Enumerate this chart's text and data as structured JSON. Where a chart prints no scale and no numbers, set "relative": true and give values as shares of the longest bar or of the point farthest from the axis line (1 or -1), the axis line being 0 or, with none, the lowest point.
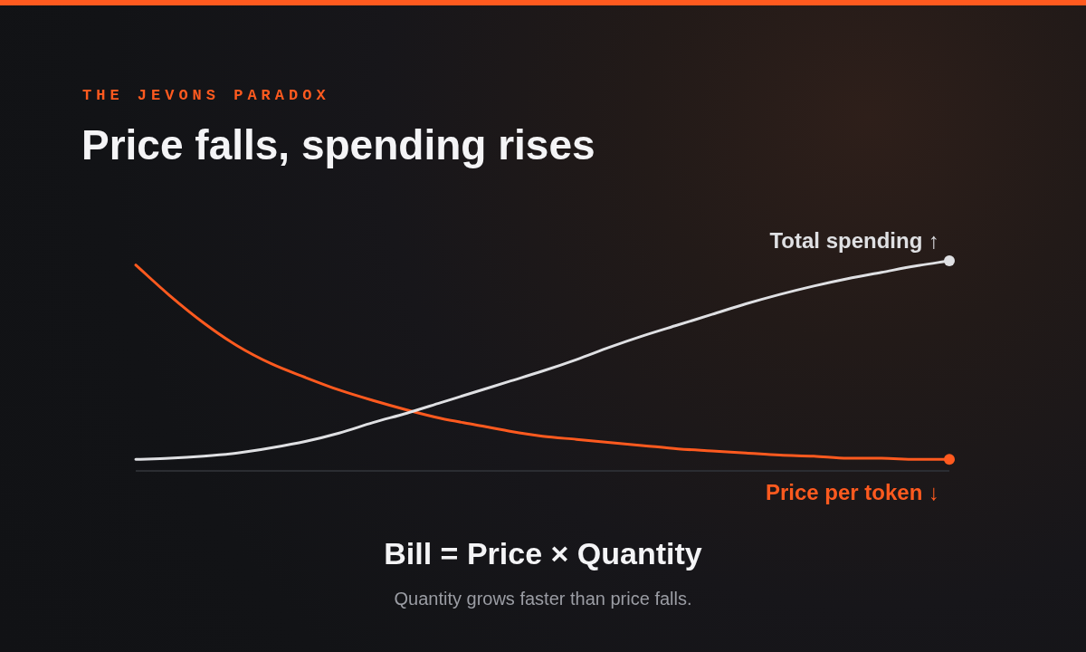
{
  "chart_data": {
    "type": "line",
    "subtitle": "THE JEVONS PARADOX",
    "title": "Price falls, spending rises",
    "relative": true,
    "categories": [
      null,
      null,
      null,
      null,
      null,
      null,
      null,
      null,
      null,
      null,
      null,
      null,
      null,
      null,
      null,
      null,
      null,
      null,
      null,
      null,
      null,
      null,
      null,
      null,
      null
    ],
    "series": [
      {
        "name": "Total spending ↑",
        "color": "#dfe0e3",
        "values": [
          0.055,
          0.06,
          0.07,
          0.085,
          0.11,
          0.14,
          0.18,
          0.23,
          0.275,
          0.325,
          0.375,
          0.425,
          0.475,
          0.53,
          0.59,
          0.645,
          0.695,
          0.745,
          0.795,
          0.84,
          0.88,
          0.915,
          0.945,
          0.975,
          1
        ]
      },
      {
        "name": "Price per token ↓",
        "color": "#ff5a1f",
        "values": [
          0.98,
          0.835,
          0.705,
          0.595,
          0.51,
          0.445,
          0.385,
          0.335,
          0.29,
          0.25,
          0.22,
          0.19,
          0.165,
          0.15,
          0.135,
          0.12,
          0.105,
          0.095,
          0.085,
          0.075,
          0.07,
          0.06,
          0.06,
          0.055,
          0.055
        ]
      }
    ],
    "annotations": [
      "Bill = Price × Quantity",
      "Quantity grows faster than price falls."
    ]
  }
}
